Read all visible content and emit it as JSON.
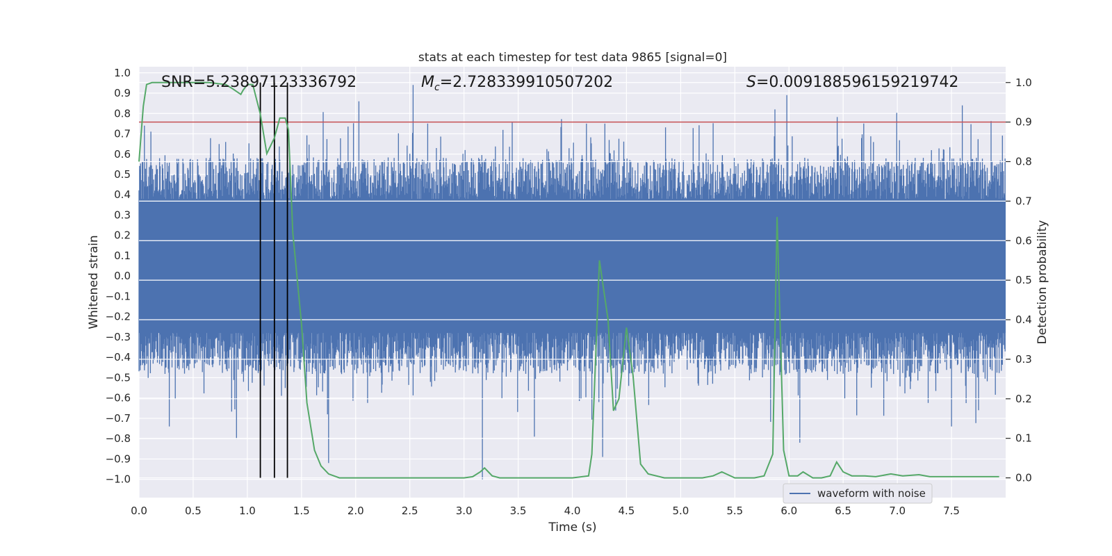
{
  "chart_data": {
    "type": "line",
    "title": "stats at each timestep for test data 9865 [signal=0]",
    "xlabel": "Time (s)",
    "ylabel_left": "Whitened strain",
    "ylabel_right": "Detection probability",
    "xlim": [
      0.0,
      8.0
    ],
    "ylim_left": [
      -1.09,
      1.03
    ],
    "ylim_right": [
      -0.05,
      1.04
    ],
    "x_ticks": [
      0.0,
      0.5,
      1.0,
      1.5,
      2.0,
      2.5,
      3.0,
      3.5,
      4.0,
      4.5,
      5.0,
      5.5,
      6.0,
      6.5,
      7.0,
      7.5
    ],
    "y_ticks_left": [
      1.0,
      0.9,
      0.8,
      0.7,
      0.6,
      0.5,
      0.4,
      0.3,
      0.2,
      0.1,
      0.0,
      -0.1,
      -0.2,
      -0.3,
      -0.4,
      -0.5,
      -0.6,
      -0.7,
      -0.8,
      -0.9,
      -1.0
    ],
    "y_ticks_right": [
      1.0,
      0.9,
      0.8,
      0.7,
      0.6,
      0.5,
      0.4,
      0.3,
      0.2,
      0.1,
      0.0
    ],
    "annotations": {
      "snr": "SNR=5.23897123336792",
      "mc_symbol": "M",
      "mc_subscript": "c",
      "mc_value": "=2.728339910507202",
      "s_symbol": "S",
      "s_value": "=0.009188596159219742"
    },
    "threshold": {
      "value": 0.9,
      "color": "#c44e52"
    },
    "vertical_markers": [
      1.12,
      1.25,
      1.37
    ],
    "waveform": {
      "name": "waveform with noise",
      "color": "#4c72b0",
      "typical_envelope": [
        -0.35,
        0.45
      ],
      "notable_peaks": [
        {
          "x": 0.05,
          "y": 0.74
        },
        {
          "x": 1.12,
          "y": 0.65
        },
        {
          "x": 1.37,
          "y": 0.62
        },
        {
          "x": 2.03,
          "y": 0.86
        },
        {
          "x": 2.53,
          "y": 0.94
        },
        {
          "x": 4.13,
          "y": 0.75
        },
        {
          "x": 4.3,
          "y": 0.75
        },
        {
          "x": 5.87,
          "y": 0.82
        },
        {
          "x": 5.98,
          "y": 0.89
        },
        {
          "x": 7.6,
          "y": 0.84
        }
      ],
      "notable_troughs": [
        {
          "x": 0.28,
          "y": -0.74
        },
        {
          "x": 0.9,
          "y": -0.8
        },
        {
          "x": 1.75,
          "y": -0.92
        },
        {
          "x": 3.17,
          "y": -1.0
        },
        {
          "x": 3.65,
          "y": -0.79
        },
        {
          "x": 4.28,
          "y": -0.89
        },
        {
          "x": 6.1,
          "y": -0.82
        },
        {
          "x": 7.5,
          "y": -0.74
        }
      ]
    },
    "detection_probability": {
      "name": "detection probability",
      "color": "#55a868",
      "x": [
        0.0,
        0.04,
        0.07,
        0.12,
        0.2,
        0.35,
        0.5,
        0.65,
        0.8,
        0.86,
        0.94,
        0.96,
        1.0,
        1.05,
        1.12,
        1.18,
        1.25,
        1.3,
        1.35,
        1.38,
        1.42,
        1.5,
        1.55,
        1.62,
        1.68,
        1.75,
        1.85,
        2.0,
        2.5,
        3.0,
        3.08,
        3.15,
        3.19,
        3.26,
        3.33,
        3.5,
        3.75,
        4.0,
        4.15,
        4.18,
        4.25,
        4.33,
        4.38,
        4.43,
        4.5,
        4.56,
        4.63,
        4.7,
        4.85,
        5.0,
        5.2,
        5.3,
        5.38,
        5.5,
        5.68,
        5.77,
        5.85,
        5.89,
        5.95,
        6.0,
        6.08,
        6.13,
        6.22,
        6.3,
        6.38,
        6.44,
        6.5,
        6.58,
        6.7,
        6.8,
        6.94,
        7.05,
        7.2,
        7.3,
        7.4,
        7.5,
        7.7,
        7.94
      ],
      "y": [
        0.8,
        0.94,
        0.995,
        1.0,
        1.0,
        1.0,
        1.0,
        1.0,
        0.995,
        0.985,
        0.97,
        0.98,
        0.995,
        0.995,
        0.92,
        0.82,
        0.86,
        0.91,
        0.91,
        0.88,
        0.62,
        0.39,
        0.19,
        0.07,
        0.03,
        0.01,
        0.0,
        0.0,
        0.0,
        0.0,
        0.003,
        0.015,
        0.025,
        0.005,
        0.0,
        0.0,
        0.0,
        0.0,
        0.005,
        0.06,
        0.55,
        0.4,
        0.17,
        0.2,
        0.38,
        0.26,
        0.035,
        0.01,
        0.0,
        0.0,
        0.0,
        0.005,
        0.015,
        0.0,
        0.0,
        0.005,
        0.06,
        0.66,
        0.07,
        0.005,
        0.005,
        0.015,
        0.0,
        0.0,
        0.005,
        0.04,
        0.015,
        0.005,
        0.005,
        0.003,
        0.01,
        0.005,
        0.008,
        0.003,
        0.003,
        0.003,
        0.003,
        0.003
      ]
    },
    "legend": {
      "label": "waveform with noise",
      "placement": "lower-right"
    }
  }
}
